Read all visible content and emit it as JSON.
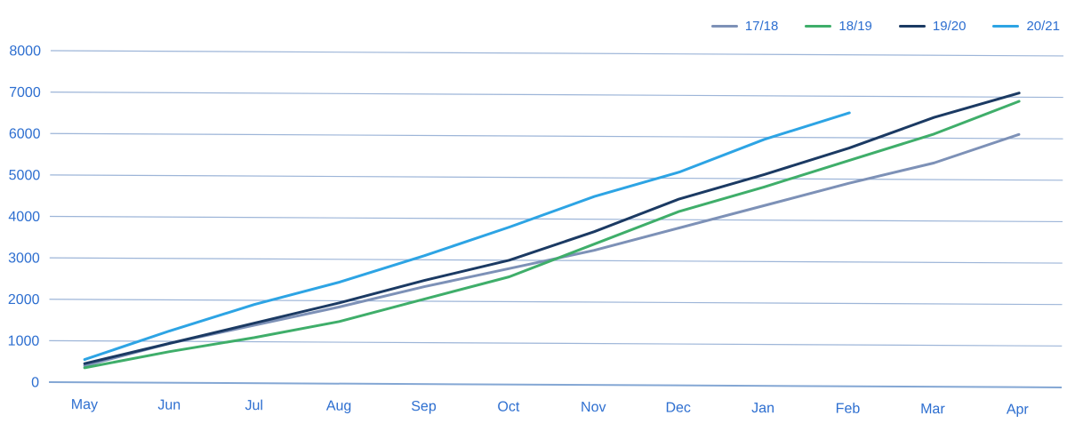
{
  "chart_data": {
    "type": "line",
    "title": "",
    "xlabel": "",
    "ylabel": "",
    "categories": [
      "May",
      "Jun",
      "Jul",
      "Aug",
      "Sep",
      "Oct",
      "Nov",
      "Dec",
      "Jan",
      "Feb",
      "Mar",
      "Apr"
    ],
    "series": [
      {
        "name": "17/18",
        "color": "#7d91b7",
        "values": [
          400,
          950,
          1400,
          1850,
          2350,
          2800,
          3250,
          3800,
          4350,
          4900,
          5400,
          6100
        ]
      },
      {
        "name": "18/19",
        "color": "#3fae6a",
        "values": [
          350,
          750,
          1100,
          1500,
          2050,
          2600,
          3400,
          4200,
          4800,
          5450,
          6100,
          6900
        ]
      },
      {
        "name": "19/20",
        "color": "#1b3a63",
        "values": [
          450,
          950,
          1450,
          1950,
          2500,
          3000,
          3700,
          4500,
          5100,
          5750,
          6500,
          7100
        ]
      },
      {
        "name": "20/21",
        "color": "#2da4e4",
        "values": [
          550,
          1250,
          1900,
          2450,
          3100,
          3800,
          4550,
          5150,
          5950,
          6600
        ]
      }
    ],
    "ylim": [
      0,
      8000
    ],
    "ytick_step": 1000,
    "ytick_labels": [
      "0",
      "1000",
      "2000",
      "3000",
      "4000",
      "5000",
      "6000",
      "7000",
      "8000"
    ],
    "grid": true,
    "legend_position": "top-right",
    "colors": {
      "tick_text": "#2e6fd0",
      "gridline": "#9db5d8",
      "axis_line": "#84a7d4",
      "background": "#ffffff"
    }
  }
}
